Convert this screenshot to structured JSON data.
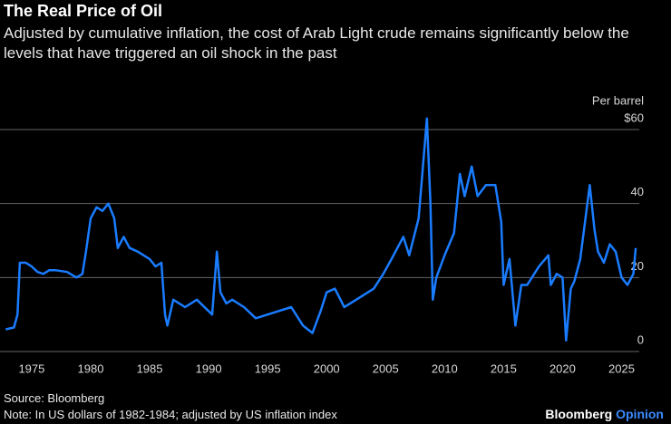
{
  "chart_data": {
    "type": "line",
    "title": "The Real Price of Oil",
    "subtitle": "Adjusted by cumulative inflation, the cost of Arab Light crude remains significantly below the levels that have triggered an oil shock in the past",
    "y_label": "Per barrel",
    "source": "Source: Bloomberg",
    "note": "Note: In US dollars of 1982-1984; adjusted by US inflation index",
    "brand": [
      "Bloomberg",
      "Opinion"
    ],
    "color": "#1a7cff",
    "grid": true,
    "xlim": [
      1972.7,
      2026.5
    ],
    "xticks": [
      1975,
      1980,
      1985,
      1990,
      1995,
      2000,
      2005,
      2010,
      2015,
      2020,
      2025
    ],
    "ylim": [
      0,
      66
    ],
    "yticks": [
      0,
      20,
      40,
      {
        "value": 60,
        "label": "$60"
      }
    ],
    "x": [
      1972.8,
      1973.5,
      1973.8,
      1974.0,
      1974.5,
      1975,
      1975.5,
      1976,
      1976.5,
      1977,
      1978,
      1978.8,
      1979.3,
      1979.6,
      1980,
      1980.5,
      1981,
      1981.5,
      1982,
      1982.3,
      1982.8,
      1983.3,
      1984,
      1985,
      1985.5,
      1986.0,
      1986.3,
      1986.5,
      1987,
      1988,
      1989,
      1990.3,
      1990.7,
      1991.0,
      1991.5,
      1992,
      1993,
      1994,
      1995,
      1996,
      1997,
      1998,
      1998.8,
      1999.5,
      2000,
      2000.7,
      2001.5,
      2002,
      2003,
      2004,
      2004.8,
      2005.5,
      2006.5,
      2007,
      2007.8,
      2008.5,
      2008.8,
      2009.0,
      2009.3,
      2010,
      2010.8,
      2011.3,
      2011.7,
      2012.3,
      2012.8,
      2013.5,
      2014.3,
      2014.8,
      2015.0,
      2015.5,
      2016.0,
      2016.5,
      2017,
      2018.0,
      2018.8,
      2019,
      2019.5,
      2020.0,
      2020.3,
      2020.7,
      2021,
      2021.5,
      2022.3,
      2022.7,
      2023,
      2023.5,
      2024,
      2024.5,
      2025,
      2025.5,
      2026.0,
      2026.2
    ],
    "values": [
      6,
      6.5,
      10,
      24,
      24,
      23,
      21.5,
      21,
      22,
      22,
      21.5,
      20,
      21,
      27,
      36,
      39,
      38,
      40,
      36,
      28,
      31,
      28,
      27,
      25,
      23,
      24,
      10,
      7,
      14,
      12,
      14,
      10,
      27,
      16,
      13,
      14,
      12,
      9,
      10,
      11,
      12,
      7,
      5,
      11,
      16,
      17,
      12,
      13,
      15,
      17,
      21,
      25,
      31,
      26,
      36,
      63,
      40,
      14,
      20,
      26,
      32,
      48,
      42,
      50,
      42,
      45,
      45,
      35,
      18,
      25,
      7,
      18,
      18,
      23,
      26,
      18,
      21,
      20,
      3,
      17,
      19,
      25,
      45,
      33,
      27,
      24,
      29,
      27,
      20,
      18,
      21,
      28
    ]
  }
}
